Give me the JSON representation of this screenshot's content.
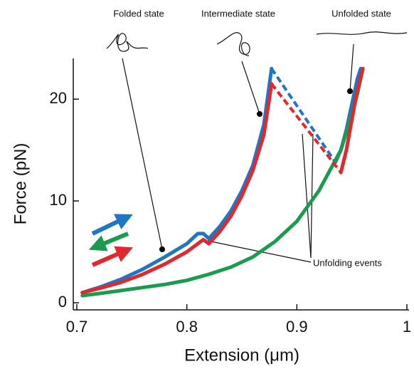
{
  "chart_data": {
    "type": "line",
    "x_label": "Extension (μm)",
    "y_label": "Force (pN)",
    "xlim": [
      0.7,
      1.0
    ],
    "xticks": [
      0.7,
      0.8,
      0.9,
      1
    ],
    "ylim": [
      -0.7,
      24
    ],
    "yticks": [
      0,
      10,
      20
    ],
    "annotations": [
      "Folded state",
      "Intermediate state",
      "Unfolded state",
      "Unfolding events"
    ],
    "series": [
      {
        "color": "#1f77c4",
        "style": "solid",
        "x": [
          0.705,
          0.72,
          0.74,
          0.76,
          0.78,
          0.8,
          0.81,
          0.815,
          0.82,
          0.83,
          0.84,
          0.85,
          0.86,
          0.87,
          0.877
        ],
        "values": [
          1.0,
          1.5,
          2.3,
          3.3,
          4.5,
          5.8,
          6.8,
          6.8,
          6.3,
          7.5,
          9.0,
          11.0,
          13.5,
          17.5,
          23.0
        ]
      },
      {
        "color": "#1f77c4",
        "style": "dashed",
        "x": [
          0.877,
          0.935
        ],
        "values": [
          23.0,
          13.8
        ]
      },
      {
        "color": "#1f77c4",
        "style": "solid",
        "x": [
          0.935,
          0.94,
          0.945,
          0.95,
          0.955,
          0.958
        ],
        "values": [
          13.8,
          15,
          17,
          19.5,
          22,
          23
        ]
      },
      {
        "color": "#1a9b4f",
        "style": "solid",
        "x": [
          0.96,
          0.955,
          0.95,
          0.94,
          0.93,
          0.92,
          0.9,
          0.88,
          0.86,
          0.84,
          0.82,
          0.8,
          0.78,
          0.76,
          0.74,
          0.72,
          0.705
        ],
        "values": [
          23,
          20.5,
          18.5,
          15,
          13,
          11,
          8,
          6,
          4.5,
          3.5,
          2.8,
          2.2,
          1.8,
          1.5,
          1.2,
          0.9,
          0.7
        ]
      },
      {
        "color": "#e0282e",
        "style": "solid",
        "x": [
          0.705,
          0.72,
          0.74,
          0.76,
          0.78,
          0.8,
          0.815,
          0.82,
          0.83,
          0.84,
          0.85,
          0.86,
          0.87,
          0.877
        ],
        "values": [
          1.0,
          1.4,
          2.0,
          2.8,
          3.8,
          5.0,
          6.2,
          5.8,
          7.0,
          8.5,
          10.5,
          13.0,
          16.5,
          21.5
        ]
      },
      {
        "color": "#e0282e",
        "style": "dashed",
        "x": [
          0.877,
          0.94
        ],
        "values": [
          21.5,
          12.8
        ]
      },
      {
        "color": "#e0282e",
        "style": "solid",
        "x": [
          0.94,
          0.945,
          0.95,
          0.955,
          0.96
        ],
        "values": [
          12.8,
          15,
          18,
          21,
          23
        ]
      }
    ]
  }
}
